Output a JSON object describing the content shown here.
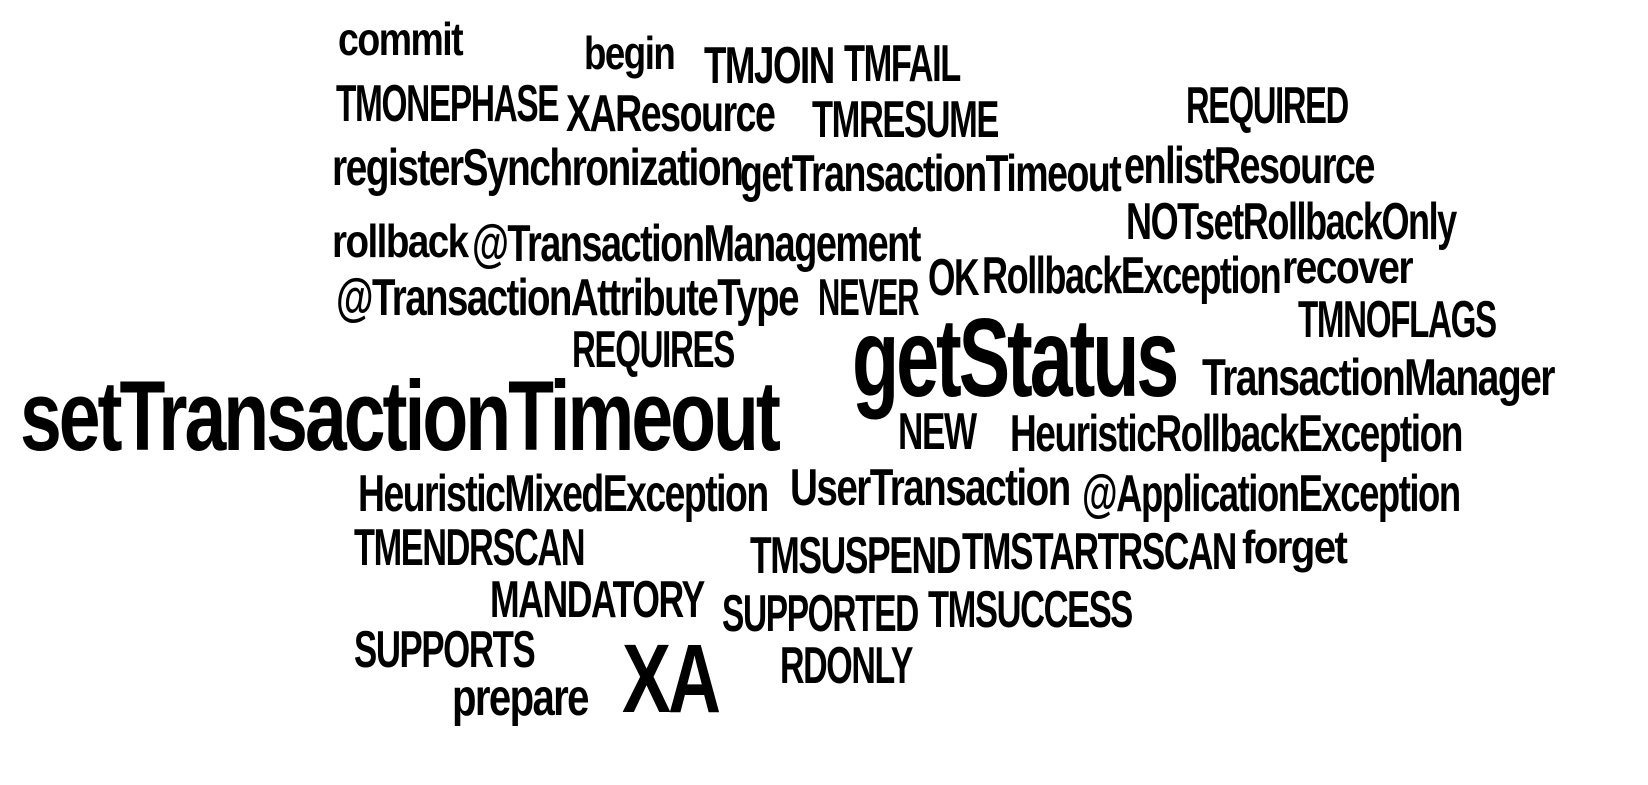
{
  "text_color": "#000000",
  "background": "#ffffff",
  "words": [
    "commit",
    "begin",
    "TMJOIN",
    "TMFAIL",
    "TMONEPHASE",
    "XAResource",
    "TMRESUME",
    "REQUIRED",
    "registerSynchronization",
    "getTransactionTimeout",
    "enlistResource",
    "NOTsetRollbackOnly",
    "rollback",
    "@TransactionManagement",
    "OK",
    "RollbackException",
    "recover",
    "@TransactionAttributeType",
    "NEVER",
    "TMNOFLAGS",
    "REQUIRES",
    "getStatus",
    "TransactionManager",
    "setTransactionTimeout",
    "NEW",
    "HeuristicRollbackException",
    "HeuristicMixedException",
    "UserTransaction",
    "@ApplicationException",
    "TMENDRSCAN",
    "TMSUSPEND",
    "TMSTARTRSCAN",
    "forget",
    "MANDATORY",
    "SUPPORTED",
    "TMSUCCESS",
    "SUPPORTS",
    "XA",
    "RDONLY",
    "prepare"
  ]
}
